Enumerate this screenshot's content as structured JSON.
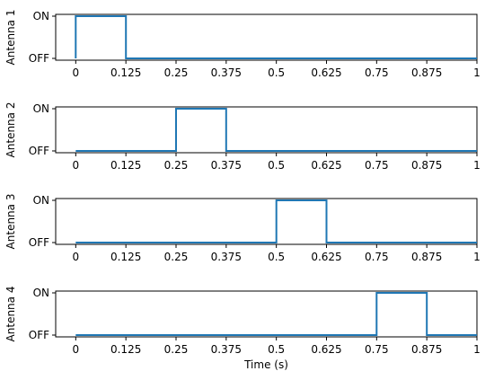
{
  "chart_data": [
    {
      "type": "line",
      "ylabel": "Antenna 1",
      "xlabel": "",
      "xlim": [
        -0.05,
        1.0
      ],
      "yticks": [
        {
          "value": 0,
          "label": "OFF"
        },
        {
          "value": 1,
          "label": "ON"
        }
      ],
      "xticks": [
        {
          "value": 0,
          "label": "0"
        },
        {
          "value": 0.125,
          "label": "0.125"
        },
        {
          "value": 0.25,
          "label": "0.25"
        },
        {
          "value": 0.375,
          "label": "0.375"
        },
        {
          "value": 0.5,
          "label": "0.5"
        },
        {
          "value": 0.625,
          "label": "0.625"
        },
        {
          "value": 0.75,
          "label": "0.75"
        },
        {
          "value": 0.875,
          "label": "0.875"
        },
        {
          "value": 1,
          "label": "1"
        }
      ],
      "series": [
        {
          "color": "#1f77b4",
          "x": [
            0,
            0,
            0.125,
            0.125,
            1
          ],
          "y": [
            0,
            1,
            1,
            0,
            0
          ]
        }
      ]
    },
    {
      "type": "line",
      "ylabel": "Antenna 2",
      "xlabel": "",
      "xlim": [
        -0.05,
        1.0
      ],
      "yticks": [
        {
          "value": 0,
          "label": "OFF"
        },
        {
          "value": 1,
          "label": "ON"
        }
      ],
      "xticks": [
        {
          "value": 0,
          "label": "0"
        },
        {
          "value": 0.125,
          "label": "0.125"
        },
        {
          "value": 0.25,
          "label": "0.25"
        },
        {
          "value": 0.375,
          "label": "0.375"
        },
        {
          "value": 0.5,
          "label": "0.5"
        },
        {
          "value": 0.625,
          "label": "0.625"
        },
        {
          "value": 0.75,
          "label": "0.75"
        },
        {
          "value": 0.875,
          "label": "0.875"
        },
        {
          "value": 1,
          "label": "1"
        }
      ],
      "series": [
        {
          "color": "#1f77b4",
          "x": [
            0,
            0.25,
            0.25,
            0.375,
            0.375,
            1
          ],
          "y": [
            0,
            0,
            1,
            1,
            0,
            0
          ]
        }
      ]
    },
    {
      "type": "line",
      "ylabel": "Antenna 3",
      "xlabel": "",
      "xlim": [
        -0.05,
        1.0
      ],
      "yticks": [
        {
          "value": 0,
          "label": "OFF"
        },
        {
          "value": 1,
          "label": "ON"
        }
      ],
      "xticks": [
        {
          "value": 0,
          "label": "0"
        },
        {
          "value": 0.125,
          "label": "0.125"
        },
        {
          "value": 0.25,
          "label": "0.25"
        },
        {
          "value": 0.375,
          "label": "0.375"
        },
        {
          "value": 0.5,
          "label": "0.5"
        },
        {
          "value": 0.625,
          "label": "0.625"
        },
        {
          "value": 0.75,
          "label": "0.75"
        },
        {
          "value": 0.875,
          "label": "0.875"
        },
        {
          "value": 1,
          "label": "1"
        }
      ],
      "series": [
        {
          "color": "#1f77b4",
          "x": [
            0,
            0.5,
            0.5,
            0.625,
            0.625,
            1
          ],
          "y": [
            0,
            0,
            1,
            1,
            0,
            0
          ]
        }
      ]
    },
    {
      "type": "line",
      "ylabel": "Antenna 4",
      "xlabel": "Time (s)",
      "xlim": [
        -0.05,
        1.0
      ],
      "yticks": [
        {
          "value": 0,
          "label": "OFF"
        },
        {
          "value": 1,
          "label": "ON"
        }
      ],
      "xticks": [
        {
          "value": 0,
          "label": "0"
        },
        {
          "value": 0.125,
          "label": "0.125"
        },
        {
          "value": 0.25,
          "label": "0.25"
        },
        {
          "value": 0.375,
          "label": "0.375"
        },
        {
          "value": 0.5,
          "label": "0.5"
        },
        {
          "value": 0.625,
          "label": "0.625"
        },
        {
          "value": 0.75,
          "label": "0.75"
        },
        {
          "value": 0.875,
          "label": "0.875"
        },
        {
          "value": 1,
          "label": "1"
        }
      ],
      "series": [
        {
          "color": "#1f77b4",
          "x": [
            0,
            0.75,
            0.75,
            0.875,
            0.875,
            1
          ],
          "y": [
            0,
            0,
            1,
            1,
            0,
            0
          ]
        }
      ]
    }
  ]
}
